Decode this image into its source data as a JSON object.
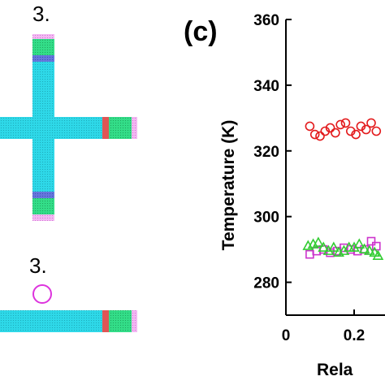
{
  "left_panel": {
    "section_labels": [
      "3.",
      "3."
    ]
  },
  "chart_data": {
    "type": "scatter",
    "panel_label": "(c)",
    "xlabel": "Rela",
    "ylabel": "Temperature (K)",
    "xlim": [
      0,
      0.4
    ],
    "ylim": [
      270,
      360
    ],
    "xticks": [
      0,
      0.2
    ],
    "xtick_labels": [
      "0",
      "0.2"
    ],
    "yticks": [
      280,
      300,
      320,
      340,
      360
    ],
    "ytick_labels": [
      "280",
      "300",
      "320",
      "340",
      "360"
    ],
    "grid": false,
    "series": [
      {
        "marker": "circle",
        "color": "#e31a1c",
        "x": [
          0.07,
          0.085,
          0.1,
          0.115,
          0.13,
          0.145,
          0.16,
          0.175,
          0.19,
          0.205,
          0.22,
          0.235,
          0.25,
          0.265
        ],
        "y": [
          327.5,
          325.0,
          324.5,
          326.0,
          327.0,
          325.5,
          328.0,
          328.5,
          326.0,
          325.0,
          327.5,
          326.5,
          328.5,
          326.0
        ]
      },
      {
        "marker": "square",
        "color": "#cc33cc",
        "x": [
          0.07,
          0.09,
          0.11,
          0.13,
          0.15,
          0.17,
          0.19,
          0.21,
          0.23,
          0.25,
          0.265
        ],
        "y": [
          288.5,
          289.5,
          290.0,
          289.0,
          289.5,
          290.5,
          290.0,
          289.5,
          290.0,
          292.5,
          291.0
        ]
      },
      {
        "marker": "triangle",
        "color": "#33cc33",
        "x": [
          0.065,
          0.08,
          0.095,
          0.11,
          0.125,
          0.14,
          0.155,
          0.17,
          0.185,
          0.2,
          0.215,
          0.23,
          0.245,
          0.26,
          0.27
        ],
        "y": [
          291.0,
          291.5,
          292.0,
          290.5,
          289.5,
          290.5,
          289.0,
          289.5,
          290.5,
          290.5,
          291.5,
          290.0,
          289.5,
          289.0,
          288.0
        ]
      }
    ]
  },
  "colors": {
    "cyan": "#2ed8e8",
    "green": "#33dd88",
    "blue_band": "#6677dd",
    "red_band": "#e05555",
    "pink": "#ee99ee",
    "magenta_circle": "#dd33dd"
  }
}
